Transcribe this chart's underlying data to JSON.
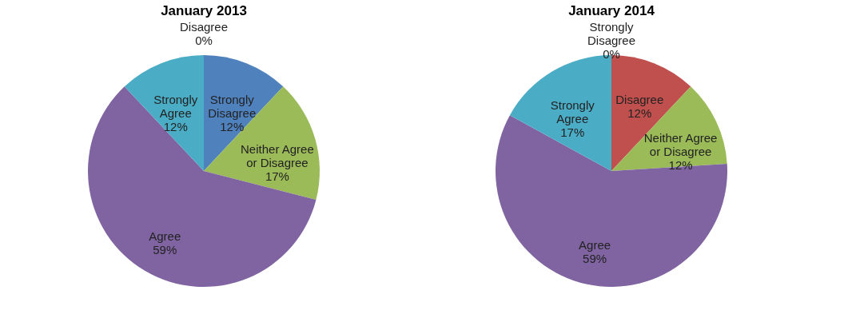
{
  "chart_data": [
    {
      "type": "pie",
      "title": "January 2013",
      "categories": [
        "Strongly Disagree",
        "Disagree",
        "Neither Agree or Disagree",
        "Agree",
        "Strongly Agree"
      ],
      "values": [
        12,
        0,
        17,
        59,
        12
      ],
      "value_labels": [
        "12%",
        "0%",
        "17%",
        "59%",
        "12%"
      ],
      "colors": [
        "#4f81bd",
        "#c0504d",
        "#9bbb59",
        "#8064a2",
        "#4bacc6"
      ]
    },
    {
      "type": "pie",
      "title": "January 2014",
      "categories": [
        "Strongly Disagree",
        "Disagree",
        "Neither Agree or Disagree",
        "Agree",
        "Strongly Agree"
      ],
      "values": [
        0,
        12,
        12,
        59,
        17
      ],
      "value_labels": [
        "0%",
        "12%",
        "12%",
        "59%",
        "17%"
      ],
      "colors": [
        "#4f81bd",
        "#c0504d",
        "#9bbb59",
        "#8064a2",
        "#4bacc6"
      ]
    }
  ]
}
